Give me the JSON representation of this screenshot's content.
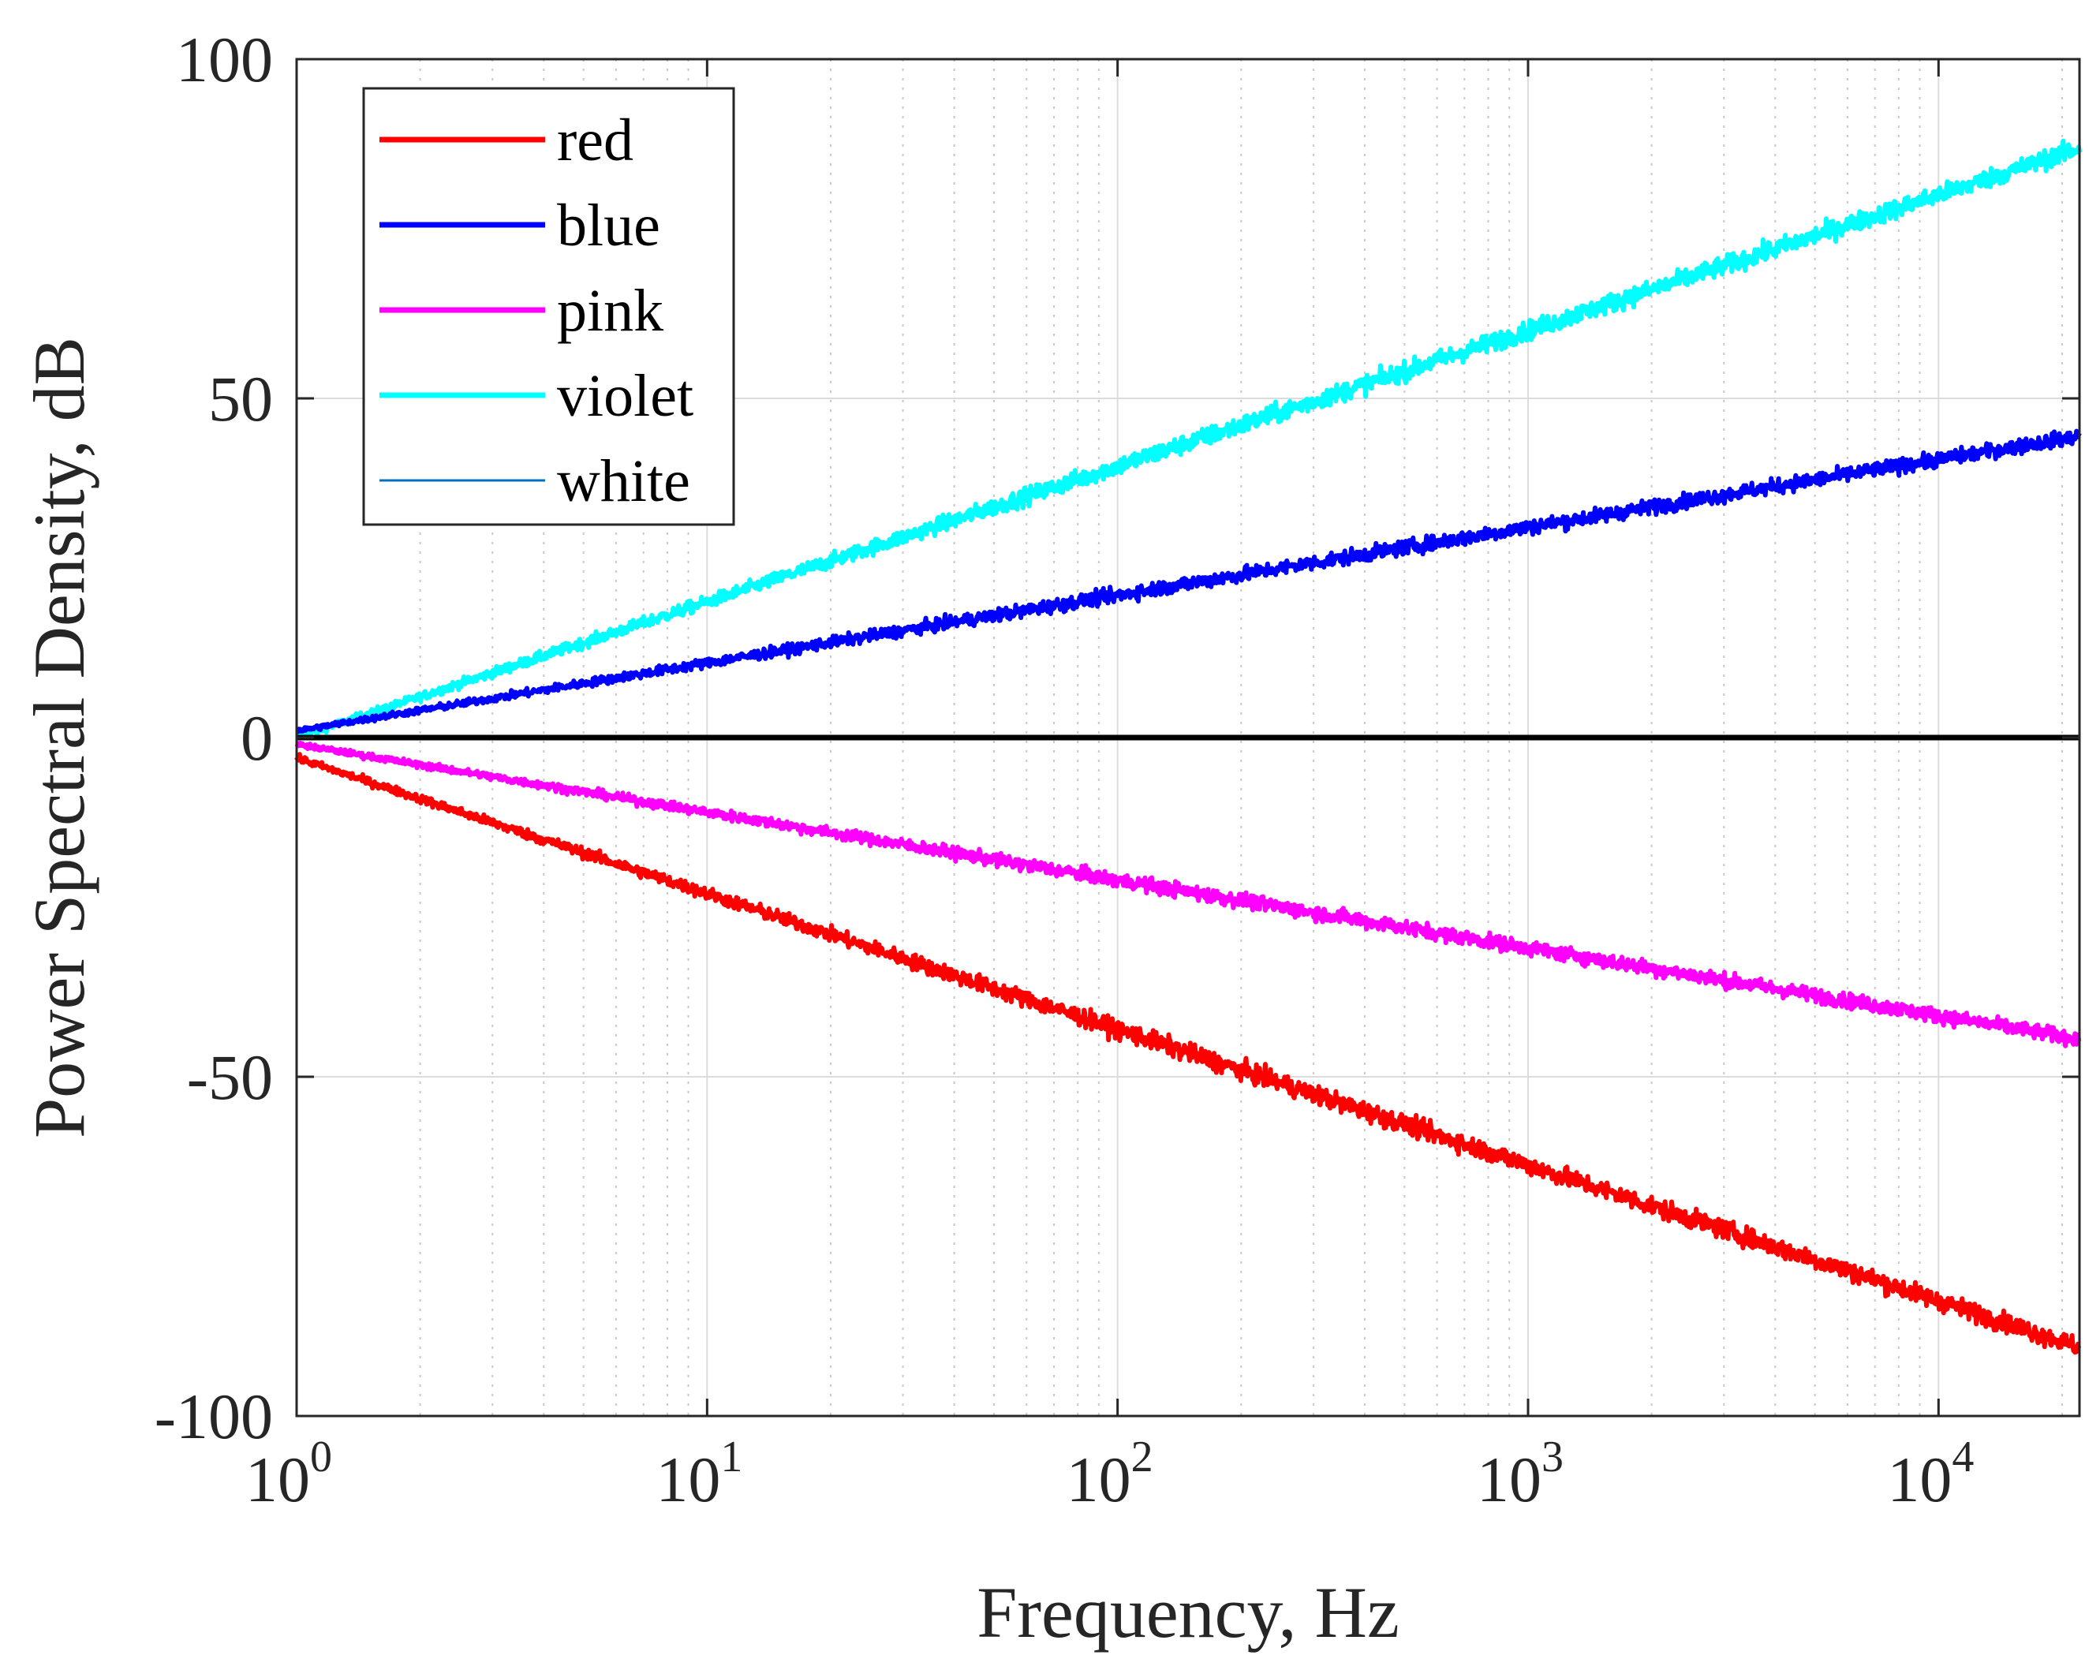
{
  "chart_data": {
    "type": "line",
    "title": "",
    "xlabel": "Frequency, Hz",
    "ylabel": "Power Spectral Density, dB",
    "xscale": "log",
    "xlim": [
      1,
      22050
    ],
    "ylim": [
      -100,
      100
    ],
    "grid": true,
    "legend_position": "top-left",
    "x_ticks": [
      {
        "value": 1,
        "base": "10",
        "exp": "0"
      },
      {
        "value": 10,
        "base": "10",
        "exp": "1"
      },
      {
        "value": 100,
        "base": "10",
        "exp": "2"
      },
      {
        "value": 1000,
        "base": "10",
        "exp": "3"
      },
      {
        "value": 10000,
        "base": "10",
        "exp": "4"
      }
    ],
    "y_ticks": [
      {
        "value": 100,
        "label": "100"
      },
      {
        "value": 50,
        "label": "50"
      },
      {
        "value": 0,
        "label": "0"
      },
      {
        "value": -50,
        "label": "-50"
      },
      {
        "value": -100,
        "label": "-100"
      }
    ],
    "series": [
      {
        "name": "red",
        "color": "#ff0000",
        "slope_db_per_decade": -20,
        "offset_db": -3,
        "noise_db": 1.8,
        "points": [
          [
            1,
            -3
          ],
          [
            10,
            -25
          ],
          [
            100,
            -45
          ],
          [
            1000,
            -65
          ],
          [
            10000,
            -85
          ],
          [
            22050,
            -92
          ]
        ]
      },
      {
        "name": "blue",
        "color": "#0000ff",
        "slope_db_per_decade": 10,
        "offset_db": 1,
        "noise_db": 1.4,
        "points": [
          [
            1,
            1
          ],
          [
            10,
            11
          ],
          [
            100,
            21
          ],
          [
            1000,
            31
          ],
          [
            10000,
            40
          ],
          [
            22050,
            44
          ]
        ]
      },
      {
        "name": "pink",
        "color": "#ff00ff",
        "slope_db_per_decade": -10,
        "offset_db": -1,
        "noise_db": 1.4,
        "points": [
          [
            1,
            -1
          ],
          [
            10,
            -11
          ],
          [
            100,
            -21
          ],
          [
            1000,
            -31
          ],
          [
            10000,
            -41
          ],
          [
            22050,
            -45
          ]
        ]
      },
      {
        "name": "violet",
        "color": "#00ffff",
        "slope_db_per_decade": 20,
        "offset_db": 0,
        "noise_db": 1.8,
        "points": [
          [
            1,
            0
          ],
          [
            10,
            20
          ],
          [
            100,
            40
          ],
          [
            1000,
            60
          ],
          [
            10000,
            80
          ],
          [
            22050,
            86
          ]
        ]
      },
      {
        "name": "white",
        "color": "#0072bd",
        "slope_db_per_decade": 0,
        "offset_db": 0,
        "noise_db": 0,
        "points": [
          [
            1,
            0
          ],
          [
            22050,
            0
          ]
        ]
      }
    ],
    "zero_line": {
      "y": 0,
      "color": "#000000"
    }
  }
}
